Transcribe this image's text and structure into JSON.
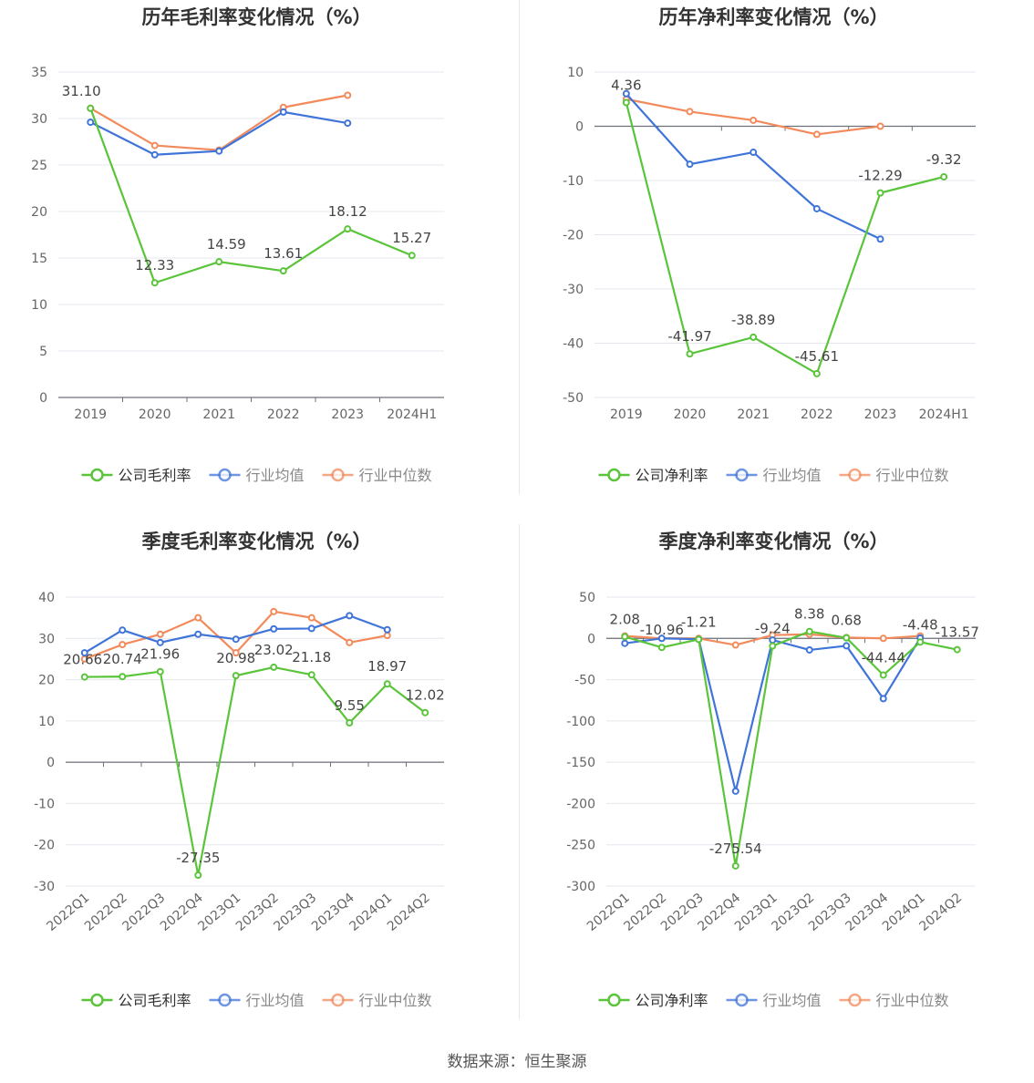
{
  "footer": {
    "source": "数据来源：恒生聚源"
  },
  "colors": {
    "company": "#5ac43a",
    "avg": "#3f74d9",
    "median": "#f28a5b"
  },
  "chart_data": [
    {
      "type": "line",
      "title": "历年毛利率变化情况（%）",
      "categories": [
        "2019",
        "2020",
        "2021",
        "2022",
        "2023",
        "2024H1"
      ],
      "ylim": [
        0,
        35
      ],
      "yticks": [
        0,
        5,
        10,
        15,
        20,
        25,
        30,
        35
      ],
      "ytick_labels": [
        "0",
        "5",
        "10",
        "15",
        "20",
        "25",
        "30",
        "35"
      ],
      "legend": [
        "公司毛利率",
        "行业均值",
        "行业中位数"
      ],
      "series": [
        {
          "name": "公司毛利率",
          "values": [
            31.1,
            12.33,
            14.59,
            13.61,
            18.12,
            15.27
          ],
          "labels": [
            "31.10",
            "12.33",
            "14.59",
            "13.61",
            "18.12",
            "15.27"
          ]
        },
        {
          "name": "行业均值",
          "values": [
            29.6,
            26.1,
            26.5,
            30.7,
            29.5,
            null
          ]
        },
        {
          "name": "行业中位数",
          "values": [
            31.1,
            27.1,
            26.6,
            31.2,
            32.5,
            null
          ]
        }
      ]
    },
    {
      "type": "line",
      "title": "历年净利率变化情况（%）",
      "categories": [
        "2019",
        "2020",
        "2021",
        "2022",
        "2023",
        "2024H1"
      ],
      "ylim": [
        -50,
        10
      ],
      "yticks": [
        -50,
        -40,
        -30,
        -20,
        -10,
        0,
        10
      ],
      "ytick_labels": [
        "-50",
        "-40",
        "-30",
        "-20",
        "-10",
        "0",
        "10"
      ],
      "legend": [
        "公司净利率",
        "行业均值",
        "行业中位数"
      ],
      "series": [
        {
          "name": "公司净利率",
          "values": [
            4.36,
            -41.97,
            -38.89,
            -45.61,
            -12.29,
            -9.32
          ],
          "labels": [
            "4.36",
            "-41.97",
            "-38.89",
            "-45.61",
            "-12.29",
            "-9.32"
          ]
        },
        {
          "name": "行业均值",
          "values": [
            6.0,
            -7.0,
            -4.8,
            -15.2,
            -20.8,
            null
          ]
        },
        {
          "name": "行业中位数",
          "values": [
            5.0,
            2.7,
            1.1,
            -1.5,
            0.0,
            null
          ]
        }
      ]
    },
    {
      "type": "line",
      "title": "季度毛利率变化情况（%）",
      "categories": [
        "2022Q1",
        "2022Q2",
        "2022Q3",
        "2022Q4",
        "2023Q1",
        "2023Q2",
        "2023Q3",
        "2023Q4",
        "2024Q1",
        "2024Q2"
      ],
      "ylim": [
        -30,
        40
      ],
      "yticks": [
        -30,
        -20,
        -10,
        0,
        10,
        20,
        30,
        40
      ],
      "ytick_labels": [
        "-30",
        "-20",
        "-10",
        "0",
        "10",
        "20",
        "30",
        "40"
      ],
      "legend": [
        "公司毛利率",
        "行业均值",
        "行业中位数"
      ],
      "series": [
        {
          "name": "公司毛利率",
          "values": [
            20.66,
            20.74,
            21.96,
            -27.35,
            20.98,
            23.02,
            21.18,
            9.55,
            18.97,
            12.02
          ],
          "labels": [
            "20.66",
            "20.74",
            "21.96",
            "-27.35",
            "20.98",
            "23.02",
            "21.18",
            "9.55",
            "18.97",
            "12.02"
          ]
        },
        {
          "name": "行业均值",
          "values": [
            26.5,
            32.0,
            29.0,
            31.0,
            29.8,
            32.3,
            32.4,
            35.5,
            32.1,
            null
          ]
        },
        {
          "name": "行业中位数",
          "values": [
            25.0,
            28.5,
            31.0,
            35.0,
            26.5,
            36.5,
            35.0,
            29.0,
            30.7,
            null
          ]
        }
      ]
    },
    {
      "type": "line",
      "title": "季度净利率变化情况（%）",
      "categories": [
        "2022Q1",
        "2022Q2",
        "2022Q3",
        "2022Q4",
        "2023Q1",
        "2023Q2",
        "2023Q3",
        "2023Q4",
        "2024Q1",
        "2024Q2"
      ],
      "ylim": [
        -300,
        50
      ],
      "yticks": [
        -300,
        -250,
        -200,
        -150,
        -100,
        -50,
        0,
        50
      ],
      "ytick_labels": [
        "-300",
        "-250",
        "-200",
        "-150",
        "-100",
        "-50",
        "0",
        "50"
      ],
      "legend": [
        "公司净利率",
        "行业均值",
        "行业中位数"
      ],
      "series": [
        {
          "name": "公司净利率",
          "values": [
            2.08,
            -10.96,
            -1.21,
            -275.54,
            -9.24,
            8.38,
            0.68,
            -44.44,
            -4.48,
            -13.57
          ],
          "labels": [
            "2.08",
            "-10.96",
            "-1.21",
            "-275.54",
            "-9.24",
            "8.38",
            "0.68",
            "-44.44",
            "-4.48",
            "-13.57"
          ]
        },
        {
          "name": "行业均值",
          "values": [
            -6.0,
            0.0,
            -1.0,
            -185.0,
            -2.0,
            -14.0,
            -9.0,
            -73.0,
            0.5,
            null
          ]
        },
        {
          "name": "行业中位数",
          "values": [
            3.0,
            0.0,
            0.0,
            -8.0,
            4.0,
            5.0,
            1.0,
            0.0,
            3.0,
            null
          ]
        }
      ]
    }
  ]
}
